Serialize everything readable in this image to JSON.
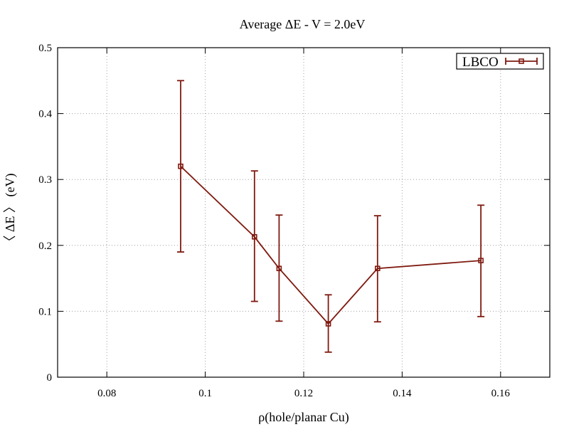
{
  "chart_data": {
    "type": "line",
    "title": "Average ΔE - V = 2.0eV",
    "xlabel": "ρ(hole/planar Cu)",
    "ylabel": "〈 ΔE 〉 (eV)",
    "xlim": [
      0.07,
      0.17
    ],
    "ylim": [
      0,
      0.5
    ],
    "xticks": [
      0.08,
      0.1,
      0.12,
      0.14,
      0.16
    ],
    "xtick_labels": [
      "0.08",
      "0.1",
      "0.12",
      "0.14",
      "0.16"
    ],
    "yticks": [
      0,
      0.1,
      0.2,
      0.3,
      0.4,
      0.5
    ],
    "ytick_labels": [
      "0",
      "0.1",
      "0.2",
      "0.3",
      "0.4",
      "0.5"
    ],
    "grid": true,
    "legend_position": "top-right",
    "series": [
      {
        "name": "LBCO",
        "color": "#7f1a10",
        "marker": "open-square",
        "error_bars": true,
        "points": [
          {
            "x": 0.095,
            "y": 0.32,
            "err_low": 0.19,
            "err_high": 0.45
          },
          {
            "x": 0.11,
            "y": 0.213,
            "err_low": 0.115,
            "err_high": 0.313
          },
          {
            "x": 0.115,
            "y": 0.165,
            "err_low": 0.085,
            "err_high": 0.246
          },
          {
            "x": 0.125,
            "y": 0.081,
            "err_low": 0.038,
            "err_high": 0.125
          },
          {
            "x": 0.135,
            "y": 0.165,
            "err_low": 0.084,
            "err_high": 0.245
          },
          {
            "x": 0.156,
            "y": 0.177,
            "err_low": 0.092,
            "err_high": 0.261
          }
        ]
      }
    ]
  }
}
